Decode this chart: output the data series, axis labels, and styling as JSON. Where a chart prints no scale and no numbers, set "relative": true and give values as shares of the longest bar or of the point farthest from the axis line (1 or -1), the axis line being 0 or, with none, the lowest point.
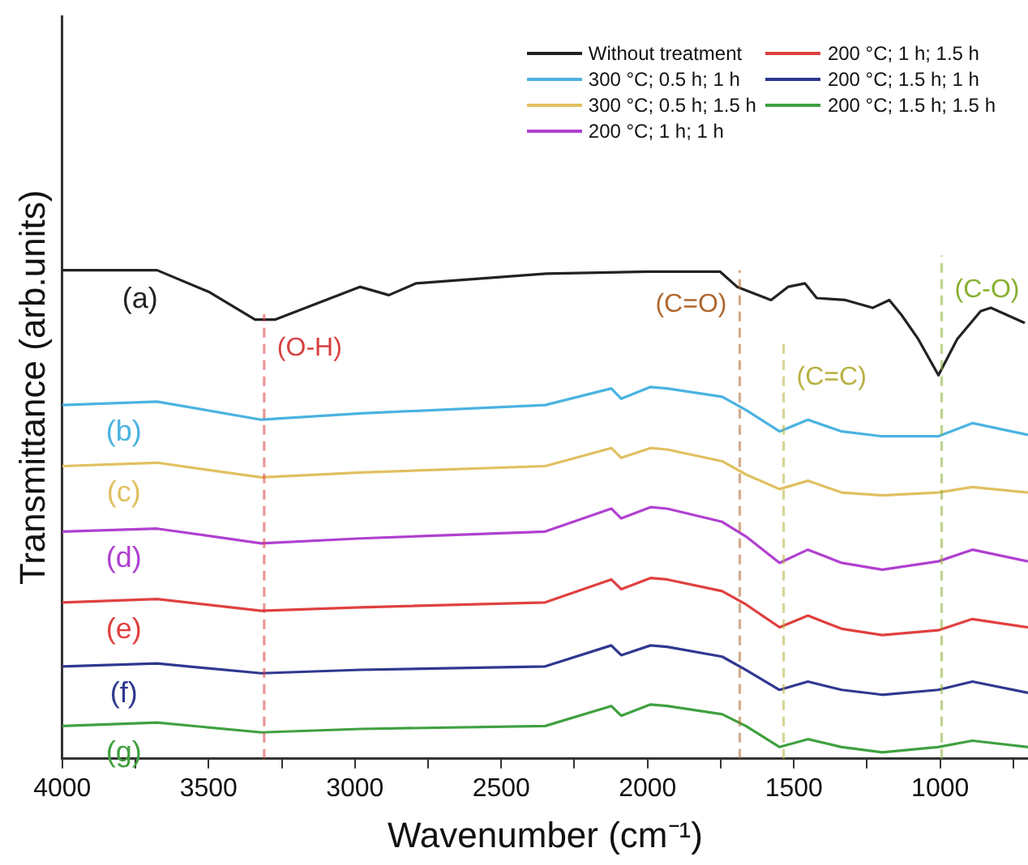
{
  "chart_data": {
    "type": "line",
    "relative": true,
    "xlabel": "Wavenumber (cm⁻¹)",
    "ylabel": "Transmittance (arb.units)",
    "xlim": [
      4000,
      700
    ],
    "xticks": [
      4000,
      {
        "value": 3750,
        "label": null
      },
      3500,
      {
        "value": 3250,
        "label": null
      },
      3000,
      {
        "value": 2750,
        "label": null
      },
      2500,
      {
        "value": 2250,
        "label": null
      },
      2000,
      {
        "value": 1750,
        "label": null
      },
      1500,
      {
        "value": 1250,
        "label": null
      },
      1000,
      {
        "value": 750,
        "label": null
      }
    ],
    "legend": "top right",
    "line_style": "solid",
    "marker": "none",
    "series": [
      {
        "name": "Without treatment",
        "color": "#222222",
        "x": [
          4000,
          3676,
          3500,
          3341,
          3272,
          2983,
          2884,
          2792,
          2347,
          2000,
          1752,
          1694,
          1578,
          1520,
          1462,
          1422,
          1324,
          1231,
          1174,
          1133,
          1075,
          1006,
          942,
          862,
          827,
          711
        ],
        "values": [
          1.0,
          1.0,
          0.956,
          0.899,
          0.899,
          0.966,
          0.949,
          0.973,
          0.993,
          0.997,
          0.997,
          0.966,
          0.939,
          0.966,
          0.973,
          0.943,
          0.939,
          0.923,
          0.939,
          0.909,
          0.859,
          0.785,
          0.859,
          0.916,
          0.923,
          0.892
        ]
      },
      {
        "name": "300 °C; 0.5 h; 1 h",
        "color": "#4ab3e0",
        "x": [
          4000,
          3676,
          3320,
          2980,
          2350,
          2124,
          2090,
          1990,
          1933,
          1745,
          1664,
          1549,
          1452,
          1337,
          1198,
          1007,
          890,
          700
        ],
        "values": [
          0.724,
          0.731,
          0.694,
          0.707,
          0.724,
          0.758,
          0.737,
          0.761,
          0.758,
          0.741,
          0.714,
          0.67,
          0.694,
          0.67,
          0.66,
          0.66,
          0.687,
          0.663
        ]
      },
      {
        "name": "300 °C; 0.5 h; 1.5 h",
        "color": "#e0c060",
        "x": [
          4000,
          3676,
          3320,
          2980,
          2350,
          2124,
          2090,
          1990,
          1933,
          1745,
          1664,
          1549,
          1452,
          1337,
          1198,
          1007,
          890,
          700
        ],
        "values": [
          0.599,
          0.606,
          0.576,
          0.586,
          0.599,
          0.636,
          0.616,
          0.636,
          0.633,
          0.609,
          0.582,
          0.552,
          0.569,
          0.545,
          0.539,
          0.545,
          0.556,
          0.545
        ]
      },
      {
        "name": "200 °C; 1 h; 1 h",
        "color": "#b040d0",
        "x": [
          4000,
          3676,
          3320,
          2980,
          2350,
          2124,
          2090,
          1990,
          1933,
          1745,
          1664,
          1549,
          1452,
          1337,
          1198,
          1007,
          890,
          700
        ],
        "values": [
          0.465,
          0.471,
          0.441,
          0.451,
          0.465,
          0.512,
          0.492,
          0.515,
          0.512,
          0.485,
          0.455,
          0.401,
          0.428,
          0.401,
          0.387,
          0.404,
          0.428,
          0.404
        ]
      },
      {
        "name": "200 °C; 1 h; 1.5 h",
        "color": "#e04040",
        "x": [
          4000,
          3676,
          3320,
          2980,
          2350,
          2124,
          2090,
          1990,
          1933,
          1745,
          1664,
          1549,
          1452,
          1337,
          1198,
          1007,
          890,
          700
        ],
        "values": [
          0.32,
          0.327,
          0.303,
          0.31,
          0.32,
          0.367,
          0.347,
          0.37,
          0.367,
          0.343,
          0.316,
          0.269,
          0.293,
          0.266,
          0.253,
          0.263,
          0.286,
          0.269
        ]
      },
      {
        "name": "200 °C; 1.5 h; 1 h",
        "color": "#303890",
        "x": [
          4000,
          3676,
          3320,
          2980,
          2350,
          2124,
          2090,
          1990,
          1933,
          1745,
          1664,
          1549,
          1452,
          1337,
          1198,
          1007,
          890,
          700
        ],
        "values": [
          0.189,
          0.195,
          0.175,
          0.182,
          0.189,
          0.232,
          0.212,
          0.232,
          0.229,
          0.209,
          0.182,
          0.141,
          0.158,
          0.141,
          0.131,
          0.141,
          0.158,
          0.135
        ]
      },
      {
        "name": "200 °C; 1.5 h; 1.5 h",
        "color": "#40a040",
        "x": [
          4000,
          3676,
          3320,
          2980,
          2350,
          2124,
          2090,
          1990,
          1933,
          1745,
          1664,
          1549,
          1452,
          1337,
          1198,
          1007,
          890,
          700
        ],
        "values": [
          0.067,
          0.074,
          0.054,
          0.061,
          0.067,
          0.108,
          0.088,
          0.111,
          0.108,
          0.091,
          0.067,
          0.024,
          0.04,
          0.024,
          0.013,
          0.024,
          0.037,
          0.024
        ]
      }
    ],
    "ref_lines": [
      {
        "axis": "x",
        "value": 3310,
        "label": "(O-H)",
        "color": "#d84040",
        "line_style": "dashed"
      },
      {
        "axis": "x",
        "value": 1685,
        "label": "(C=O)",
        "color": "#b06830",
        "line_style": "dashed"
      },
      {
        "axis": "x",
        "value": 1535,
        "label": "(C=C)",
        "color": "#b8b040",
        "line_style": "dashed"
      },
      {
        "axis": "x",
        "value": 995,
        "label": "(C-O)",
        "color": "#88b030",
        "line_style": "dashed"
      }
    ],
    "annotations": [
      "(a)",
      "(b)",
      "(c)",
      "(d)",
      "(e)",
      "(f)",
      "(g)"
    ]
  }
}
